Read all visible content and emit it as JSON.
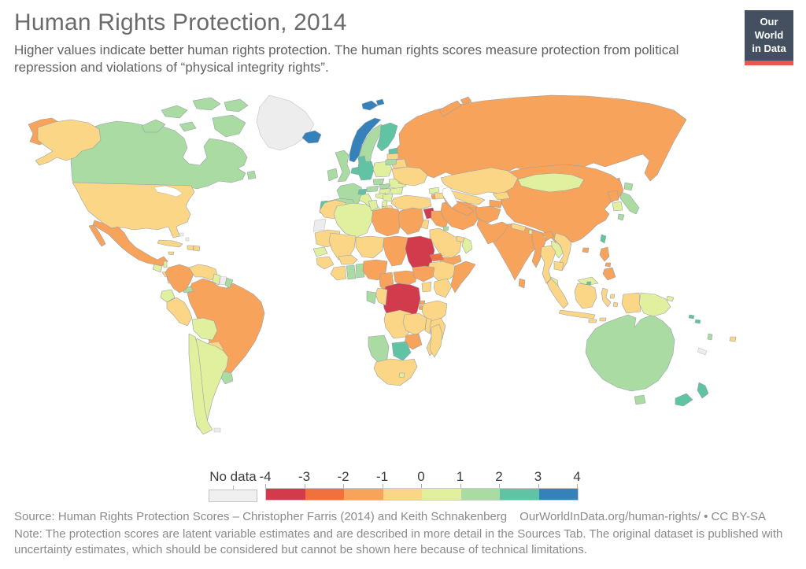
{
  "header": {
    "title": "Human Rights Protection, 2014",
    "subtitle": "Higher values indicate better human rights protection. The human rights scores measure protection from political repression and violations of “physical integrity rights”."
  },
  "logo": {
    "line1": "Our World",
    "line2": "in Data",
    "bg_color": "#44505f",
    "bar_color": "#e8584b"
  },
  "legend": {
    "no_data_label": "No data",
    "tick_labels": [
      "-4",
      "-3",
      "-2",
      "-1",
      "0",
      "1",
      "2",
      "3",
      "4"
    ],
    "bins": [
      "-4 to -3",
      "-3 to -2",
      "-2 to -1",
      "-1 to 0",
      "0 to 1",
      "1 to 2",
      "2 to 3",
      "3 to 4"
    ],
    "colors": [
      "#d23b4b",
      "#f1703d",
      "#f8a35b",
      "#fbd687",
      "#e1f09e",
      "#a9dba3",
      "#5fc3a4",
      "#3582bb"
    ],
    "no_data_color": "#ededed"
  },
  "footer": {
    "source": "Source: Human Rights Protection Scores – Christopher Farris (2014) and Keith Schnakenberg",
    "credit": "OurWorldInData.org/human-rights/ • CC BY-SA",
    "note": "Note: The protection scores are latent variable estimates and are described in more detail in the Sources Tab. The original dataset is published with uncertainty estimates, which should be considered but cannot be shown here because of technical limitations."
  },
  "map": {
    "regions": [
      {
        "id": "russia",
        "name": "Russia",
        "band": 2
      },
      {
        "id": "canada",
        "name": "Canada",
        "band": 5
      },
      {
        "id": "greenland",
        "name": "Greenland",
        "band": -1
      },
      {
        "id": "usa",
        "name": "United States",
        "band": 3
      },
      {
        "id": "mexico",
        "name": "Mexico",
        "band": 2
      },
      {
        "id": "guatemala",
        "name": "Guatemala",
        "band": 4
      },
      {
        "id": "belize",
        "name": "Belize",
        "band": 4
      },
      {
        "id": "honduras",
        "name": "Honduras",
        "band": 3
      },
      {
        "id": "nicaragua",
        "name": "Nicaragua",
        "band": 3
      },
      {
        "id": "costa-rica",
        "name": "Costa Rica",
        "band": 5
      },
      {
        "id": "panama",
        "name": "Panama",
        "band": 5
      },
      {
        "id": "cuba",
        "name": "Cuba",
        "band": 3
      },
      {
        "id": "jamaica",
        "name": "Jamaica",
        "band": 3
      },
      {
        "id": "haiti",
        "name": "Haiti",
        "band": 3
      },
      {
        "id": "dominican-republic",
        "name": "Dominican Republic",
        "band": 3
      },
      {
        "id": "bahamas",
        "name": "Bahamas",
        "band": -1
      },
      {
        "id": "colombia",
        "name": "Colombia",
        "band": 2
      },
      {
        "id": "venezuela",
        "name": "Venezuela",
        "band": 3
      },
      {
        "id": "guyana",
        "name": "Guyana",
        "band": 4
      },
      {
        "id": "suriname",
        "name": "Suriname",
        "band": -1
      },
      {
        "id": "french-guiana",
        "name": "French Guiana",
        "band": 5
      },
      {
        "id": "ecuador",
        "name": "Ecuador",
        "band": 4
      },
      {
        "id": "peru",
        "name": "Peru",
        "band": 3
      },
      {
        "id": "brazil",
        "name": "Brazil",
        "band": 2
      },
      {
        "id": "bolivia",
        "name": "Bolivia",
        "band": 4
      },
      {
        "id": "paraguay",
        "name": "Paraguay",
        "band": 3
      },
      {
        "id": "chile",
        "name": "Chile",
        "band": 4
      },
      {
        "id": "argentina",
        "name": "Argentina",
        "band": 4
      },
      {
        "id": "uruguay",
        "name": "Uruguay",
        "band": 5
      },
      {
        "id": "falkland-islands",
        "name": "Falkland Islands",
        "band": -1
      },
      {
        "id": "iceland",
        "name": "Iceland",
        "band": 7
      },
      {
        "id": "norway",
        "name": "Norway",
        "band": 7
      },
      {
        "id": "sweden",
        "name": "Sweden",
        "band": 5
      },
      {
        "id": "finland",
        "name": "Finland",
        "band": 6
      },
      {
        "id": "denmark",
        "name": "Denmark",
        "band": 6
      },
      {
        "id": "uk",
        "name": "United Kingdom",
        "band": 5
      },
      {
        "id": "ireland",
        "name": "Ireland",
        "band": 5
      },
      {
        "id": "france",
        "name": "France",
        "band": 5
      },
      {
        "id": "spain",
        "name": "Spain",
        "band": 5
      },
      {
        "id": "portugal",
        "name": "Portugal",
        "band": 6
      },
      {
        "id": "benelux",
        "name": "Belgium and Netherlands",
        "band": 6
      },
      {
        "id": "germany",
        "name": "Germany",
        "band": 6
      },
      {
        "id": "switzerland",
        "name": "Switzerland",
        "band": 6
      },
      {
        "id": "austria",
        "name": "Austria",
        "band": 5
      },
      {
        "id": "czechia",
        "name": "Czechia",
        "band": 5
      },
      {
        "id": "slovakia",
        "name": "Slovakia",
        "band": 5
      },
      {
        "id": "poland",
        "name": "Poland",
        "band": 4
      },
      {
        "id": "italy",
        "name": "Italy",
        "band": 4
      },
      {
        "id": "croatia",
        "name": "Croatia",
        "band": 4
      },
      {
        "id": "serbia",
        "name": "Serbia",
        "band": 4
      },
      {
        "id": "albania",
        "name": "Albania",
        "band": 4
      },
      {
        "id": "greece",
        "name": "Greece",
        "band": 3
      },
      {
        "id": "romania",
        "name": "Romania",
        "band": 4
      },
      {
        "id": "bulgaria",
        "name": "Bulgaria",
        "band": 4
      },
      {
        "id": "hungary",
        "name": "Hungary",
        "band": 4
      },
      {
        "id": "ukraine",
        "name": "Ukraine",
        "band": 3
      },
      {
        "id": "belarus",
        "name": "Belarus",
        "band": 3
      },
      {
        "id": "moldova",
        "name": "Moldova",
        "band": 3
      },
      {
        "id": "estonia",
        "name": "Estonia",
        "band": 6
      },
      {
        "id": "latvia",
        "name": "Latvia",
        "band": 3
      },
      {
        "id": "lithuania",
        "name": "Lithuania",
        "band": 5
      },
      {
        "id": "turkey",
        "name": "Turkey",
        "band": 3
      },
      {
        "id": "cyprus",
        "name": "Cyprus",
        "band": 3
      },
      {
        "id": "syria",
        "name": "Syria",
        "band": 0
      },
      {
        "id": "israel",
        "name": "Israel",
        "band": 5
      },
      {
        "id": "jordan",
        "name": "Jordan",
        "band": 3
      },
      {
        "id": "iraq",
        "name": "Iraq",
        "band": 2
      },
      {
        "id": "iran",
        "name": "Iran",
        "band": 2
      },
      {
        "id": "saudi-arabia",
        "name": "Saudi Arabia",
        "band": 3
      },
      {
        "id": "kuwait",
        "name": "Kuwait",
        "band": 5
      },
      {
        "id": "uae",
        "name": "United Arab Emirates",
        "band": 3
      },
      {
        "id": "oman",
        "name": "Oman",
        "band": 4
      },
      {
        "id": "yemen",
        "name": "Yemen",
        "band": 2
      },
      {
        "id": "georgia",
        "name": "Georgia",
        "band": 4
      },
      {
        "id": "armenia",
        "name": "Armenia",
        "band": 2
      },
      {
        "id": "azerbaijan",
        "name": "Azerbaijan",
        "band": 3
      },
      {
        "id": "kazakhstan",
        "name": "Kazakhstan",
        "band": 3
      },
      {
        "id": "uzbekistan",
        "name": "Uzbekistan",
        "band": 3
      },
      {
        "id": "turkmenistan",
        "name": "Turkmenistan",
        "band": 2
      },
      {
        "id": "kyrgyzstan",
        "name": "Kyrgyzstan",
        "band": 3
      },
      {
        "id": "tajikistan",
        "name": "Tajikistan",
        "band": 2
      },
      {
        "id": "afghanistan",
        "name": "Afghanistan",
        "band": 2
      },
      {
        "id": "pakistan",
        "name": "Pakistan",
        "band": 2
      },
      {
        "id": "india",
        "name": "India",
        "band": 2
      },
      {
        "id": "nepal",
        "name": "Nepal",
        "band": 3
      },
      {
        "id": "bhutan",
        "name": "Bhutan",
        "band": 4
      },
      {
        "id": "bangladesh",
        "name": "Bangladesh",
        "band": 3
      },
      {
        "id": "sri-lanka",
        "name": "Sri Lanka",
        "band": 2
      },
      {
        "id": "china",
        "name": "China",
        "band": 2
      },
      {
        "id": "mongolia",
        "name": "Mongolia",
        "band": 4
      },
      {
        "id": "north-korea",
        "name": "North Korea",
        "band": 2
      },
      {
        "id": "south-korea",
        "name": "South Korea",
        "band": 4
      },
      {
        "id": "japan",
        "name": "Japan",
        "band": 5
      },
      {
        "id": "taiwan",
        "name": "Taiwan",
        "band": 6
      },
      {
        "id": "myanmar",
        "name": "Myanmar",
        "band": 2
      },
      {
        "id": "thailand",
        "name": "Thailand",
        "band": 3
      },
      {
        "id": "laos",
        "name": "Laos",
        "band": 4
      },
      {
        "id": "vietnam",
        "name": "Vietnam",
        "band": 3
      },
      {
        "id": "cambodia",
        "name": "Cambodia",
        "band": 3
      },
      {
        "id": "malaysia",
        "name": "Malaysia",
        "band": 4
      },
      {
        "id": "brunei",
        "name": "Brunei",
        "band": 6
      },
      {
        "id": "indonesia",
        "name": "Indonesia",
        "band": 3
      },
      {
        "id": "philippines",
        "name": "Philippines",
        "band": 2
      },
      {
        "id": "papua-new-guinea",
        "name": "Papua New Guinea",
        "band": 4
      },
      {
        "id": "morocco",
        "name": "Morocco",
        "band": 3
      },
      {
        "id": "western-sahara",
        "name": "Western Sahara",
        "band": -1
      },
      {
        "id": "algeria",
        "name": "Algeria",
        "band": 4
      },
      {
        "id": "tunisia",
        "name": "Tunisia",
        "band": 4
      },
      {
        "id": "libya",
        "name": "Libya",
        "band": 2
      },
      {
        "id": "egypt",
        "name": "Egypt",
        "band": 2
      },
      {
        "id": "mauritania",
        "name": "Mauritania",
        "band": 3
      },
      {
        "id": "mali",
        "name": "Mali",
        "band": 3
      },
      {
        "id": "niger",
        "name": "Niger",
        "band": 3
      },
      {
        "id": "chad",
        "name": "Chad",
        "band": 2
      },
      {
        "id": "sudan",
        "name": "Sudan",
        "band": 0
      },
      {
        "id": "eritrea",
        "name": "Eritrea",
        "band": 1
      },
      {
        "id": "ethiopia",
        "name": "Ethiopia",
        "band": 3
      },
      {
        "id": "somalia",
        "name": "Somalia",
        "band": 2
      },
      {
        "id": "senegal",
        "name": "Senegal",
        "band": 4
      },
      {
        "id": "guinea",
        "name": "Guinea",
        "band": 3
      },
      {
        "id": "ivory-coast",
        "name": "Cote d'Ivoire",
        "band": 3
      },
      {
        "id": "ghana",
        "name": "Ghana",
        "band": 5
      },
      {
        "id": "togo-benin",
        "name": "Togo and Benin",
        "band": 5
      },
      {
        "id": "burkina-faso",
        "name": "Burkina Faso",
        "band": 3
      },
      {
        "id": "nigeria",
        "name": "Nigeria",
        "band": 2
      },
      {
        "id": "cameroon",
        "name": "Cameroon",
        "band": 2
      },
      {
        "id": "central-african-republic",
        "name": "Central African Republic",
        "band": 2
      },
      {
        "id": "south-sudan",
        "name": "South Sudan",
        "band": 2
      },
      {
        "id": "uganda",
        "name": "Uganda",
        "band": 3
      },
      {
        "id": "kenya",
        "name": "Kenya",
        "band": 3
      },
      {
        "id": "drc",
        "name": "Democratic Republic of Congo",
        "band": 0
      },
      {
        "id": "congo",
        "name": "Congo",
        "band": 3
      },
      {
        "id": "gabon",
        "name": "Gabon",
        "band": 5
      },
      {
        "id": "rwanda",
        "name": "Rwanda",
        "band": 2
      },
      {
        "id": "burundi",
        "name": "Burundi",
        "band": 2
      },
      {
        "id": "tanzania",
        "name": "Tanzania",
        "band": 3
      },
      {
        "id": "angola",
        "name": "Angola",
        "band": 3
      },
      {
        "id": "zambia",
        "name": "Zambia",
        "band": 3
      },
      {
        "id": "malawi",
        "name": "Malawi",
        "band": 3
      },
      {
        "id": "mozambique",
        "name": "Mozambique",
        "band": 3
      },
      {
        "id": "zimbabwe",
        "name": "Zimbabwe",
        "band": 2
      },
      {
        "id": "botswana",
        "name": "Botswana",
        "band": 6
      },
      {
        "id": "namibia",
        "name": "Namibia",
        "band": 5
      },
      {
        "id": "south-africa",
        "name": "South Africa",
        "band": 3
      },
      {
        "id": "lesotho",
        "name": "Lesotho",
        "band": 4
      },
      {
        "id": "madagascar",
        "name": "Madagascar",
        "band": 3
      },
      {
        "id": "australia",
        "name": "Australia",
        "band": 5
      },
      {
        "id": "new-zealand",
        "name": "New Zealand",
        "band": 6
      },
      {
        "id": "fiji",
        "name": "Fiji",
        "band": 3
      },
      {
        "id": "new-caledonia",
        "name": "New Caledonia",
        "band": -1
      },
      {
        "id": "vanuatu",
        "name": "Vanuatu",
        "band": 5
      },
      {
        "id": "solomon-islands",
        "name": "Solomon Islands",
        "band": 6
      }
    ]
  }
}
